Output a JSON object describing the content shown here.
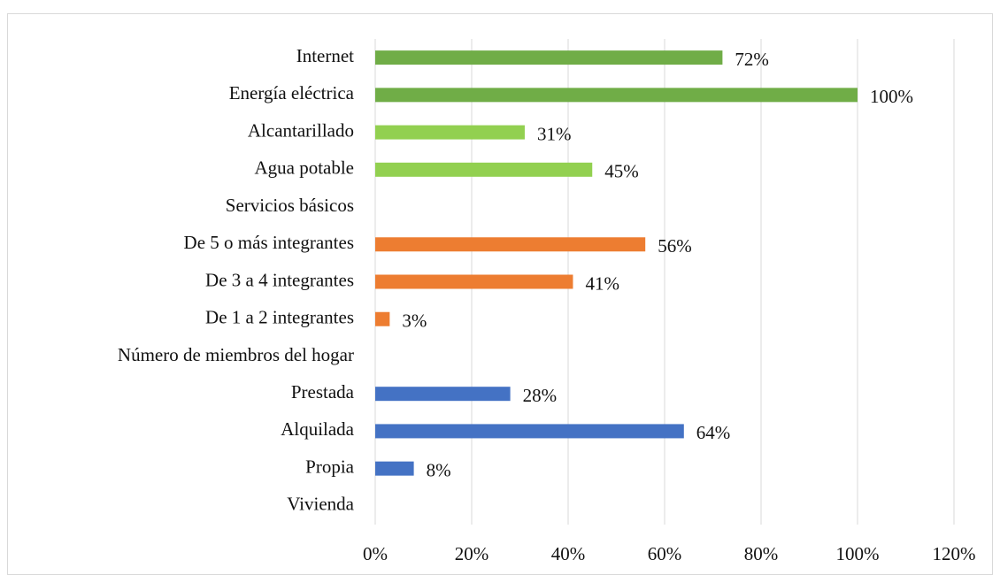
{
  "chart_data": {
    "type": "hbar",
    "categories": [
      "Internet",
      "Energía eléctrica",
      "Alcantarillado",
      "Agua potable",
      "Servicios básicos",
      "De 5 o más integrantes",
      "De 3 a 4 integrantes",
      "De 1 a 2 integrantes",
      "Número de miembros del hogar",
      "Prestada",
      "Alquilada",
      "Propia",
      "Vivienda"
    ],
    "values": [
      72,
      100,
      31,
      45,
      null,
      56,
      41,
      3,
      null,
      28,
      64,
      8,
      null
    ],
    "value_labels": [
      "72%",
      "100%",
      "31%",
      "45%",
      null,
      "56%",
      "41%",
      "3%",
      null,
      "28%",
      "64%",
      "8%",
      null
    ],
    "colors": [
      "#70ad47",
      "#70ad47",
      "#92d050",
      "#92d050",
      null,
      "#ed7d31",
      "#ed7d31",
      "#ed7d31",
      null,
      "#4472c4",
      "#4472c4",
      "#4472c4",
      null
    ],
    "xlim": [
      0,
      120
    ],
    "xticks": [
      {
        "value": 0,
        "label": "0%"
      },
      {
        "value": 20,
        "label": "20%"
      },
      {
        "value": 40,
        "label": "40%"
      },
      {
        "value": 60,
        "label": "60%"
      },
      {
        "value": 80,
        "label": "80%"
      },
      {
        "value": 100,
        "label": "100%"
      },
      {
        "value": 120,
        "label": "120%"
      }
    ],
    "grid": true
  }
}
